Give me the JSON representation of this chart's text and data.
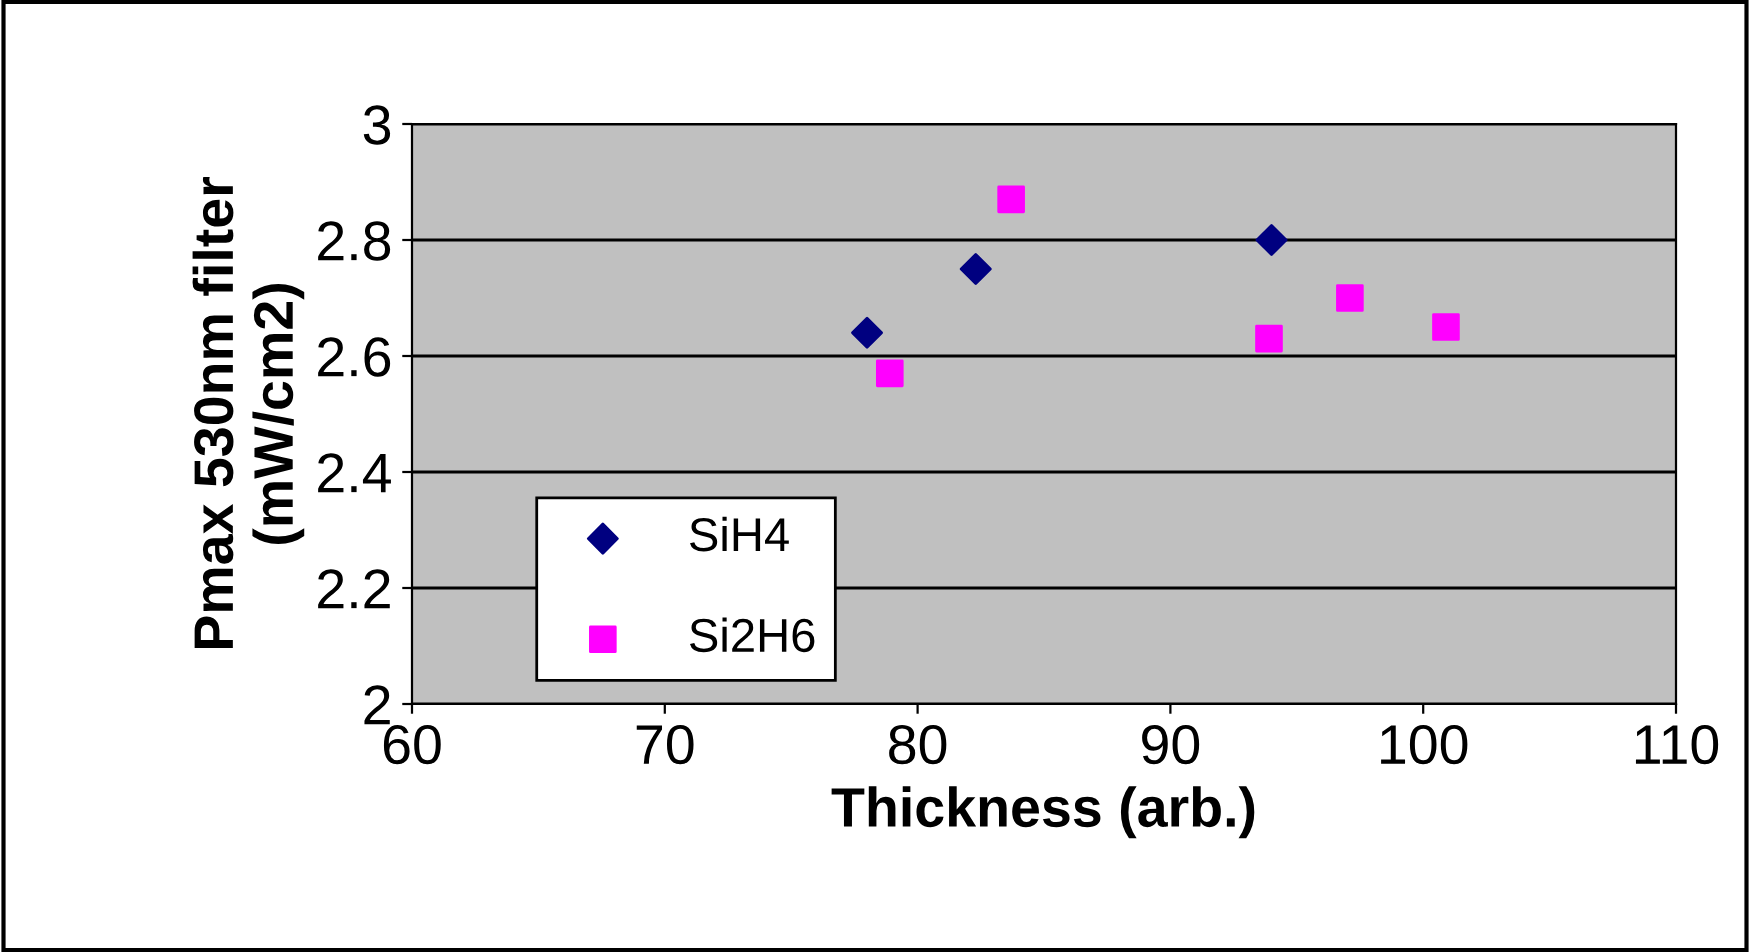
{
  "chart_data": {
    "type": "scatter",
    "xlabel": "Thickness (arb.)",
    "ylabel": "Pmax 530nm filter\n(mW/cm2)",
    "xlim": [
      60,
      110
    ],
    "xticks": [
      60,
      70,
      80,
      90,
      100,
      110
    ],
    "ylim": [
      2,
      3
    ],
    "yticks": [
      2,
      2.2,
      2.4,
      2.6,
      2.8,
      3
    ],
    "grid": "y",
    "legend": "bottom left",
    "series": [
      {
        "name": "SiH4",
        "color": "#000080",
        "marker": "diamond",
        "x": [
          78.0,
          82.3,
          94.0
        ],
        "values": [
          2.64,
          2.75,
          2.8
        ]
      },
      {
        "name": "Si2H6",
        "color": "#ff00ff",
        "marker": "square",
        "x": [
          78.9,
          83.7,
          93.9,
          97.1,
          100.9
        ],
        "values": [
          2.57,
          2.87,
          2.63,
          2.7,
          2.65
        ]
      }
    ]
  }
}
